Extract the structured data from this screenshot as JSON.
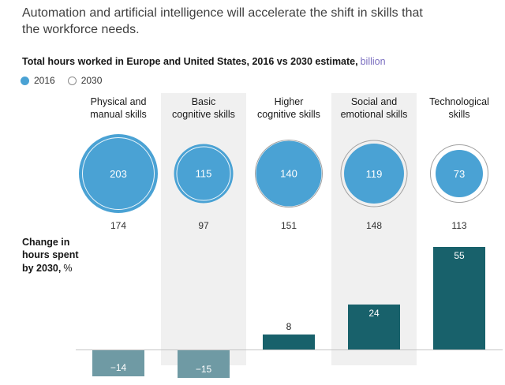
{
  "title": "Automation and artificial intelligence will accelerate the shift in skills that\nthe workforce needs.",
  "subtitle": {
    "text": "Total hours worked in Europe and United States, 2016 vs 2030 estimate,",
    "unit": "billion"
  },
  "legend": {
    "item_2016": "2016",
    "item_2030": "2030"
  },
  "side_label": {
    "text": "Change in\nhours spent\nby 2030,",
    "unit": "%"
  },
  "columns": [
    {
      "label": "Physical and\nmanual skills",
      "v2016": "203",
      "v2030": "174",
      "change_label": "−14"
    },
    {
      "label": "Basic\ncognitive skills",
      "v2016": "115",
      "v2030": "97",
      "change_label": "−15"
    },
    {
      "label": "Higher\ncognitive skills",
      "v2016": "140",
      "v2030": "151",
      "change_label": "8"
    },
    {
      "label": "Social and\nemotional skills",
      "v2016": "119",
      "v2030": "148",
      "change_label": "24"
    },
    {
      "label": "Technological\nskills",
      "v2016": "73",
      "v2030": "113",
      "change_label": "55"
    }
  ],
  "colors": {
    "bubble_fill": "#4aa2d4",
    "bar_positive": "#18616b",
    "bar_negative": "#6f9aa4",
    "stripe": "#f0f0f0",
    "unit_text": "#7a6ec0"
  },
  "chart_data": {
    "type": "bubble+bar",
    "title": "Total hours worked in Europe and United States, 2016 vs 2030 estimate, billion",
    "categories": [
      "Physical and manual skills",
      "Basic cognitive skills",
      "Higher cognitive skills",
      "Social and emotional skills",
      "Technological skills"
    ],
    "series": [
      {
        "name": "2016",
        "values": [
          203,
          115,
          140,
          119,
          73
        ]
      },
      {
        "name": "2030",
        "values": [
          174,
          97,
          151,
          148,
          113
        ]
      }
    ],
    "change_by_2030_percent": [
      -14,
      -15,
      8,
      24,
      55
    ],
    "units": "billion hours (bubbles), percent (bars)",
    "legend_position": "top-left",
    "highlighted_columns": [
      1,
      3
    ]
  }
}
